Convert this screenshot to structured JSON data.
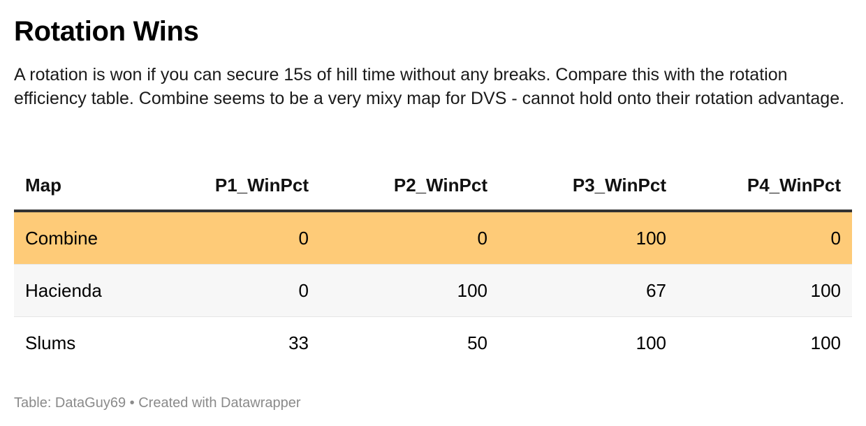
{
  "title": "Rotation Wins",
  "description": "A rotation is won if you can secure 15s of hill time without any breaks. Compare this with the rotation efficiency table. Combine seems to be a very mixy map for DVS - cannot hold onto their rotation advantage.",
  "footer": "Table: DataGuy69 • Created with Datawrapper",
  "colors": {
    "highlight_row": "#fecb78",
    "alt_row": "#f7f7f7",
    "header_rule": "#333333"
  },
  "chart_data": {
    "type": "table",
    "columns": [
      "Map",
      "P1_WinPct",
      "P2_WinPct",
      "P3_WinPct",
      "P4_WinPct"
    ],
    "rows": [
      {
        "map": "Combine",
        "values": [
          "0",
          "0",
          "100",
          "0"
        ],
        "highlight": true
      },
      {
        "map": "Hacienda",
        "values": [
          "0",
          "100",
          "67",
          "100"
        ],
        "highlight": false
      },
      {
        "map": "Slums",
        "values": [
          "33",
          "50",
          "100",
          "100"
        ],
        "highlight": false
      }
    ]
  }
}
